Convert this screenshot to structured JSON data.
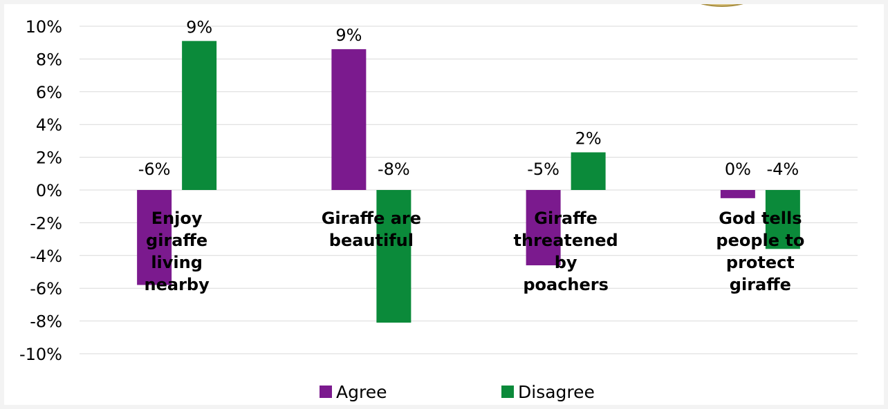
{
  "chart_data": {
    "type": "bar",
    "categories": [
      "Enjoy giraffe living nearby",
      "Giraffe are beautiful",
      "Giraffe threatened by poachers",
      "God tells people to protect giraffe"
    ],
    "category_label_lines": [
      [
        "Enjoy",
        "giraffe",
        "living",
        "nearby"
      ],
      [
        "Giraffe are",
        "beautiful"
      ],
      [
        "Giraffe",
        "threatened",
        "by",
        "poachers"
      ],
      [
        "God tells",
        "people to",
        "protect",
        "giraffe"
      ]
    ],
    "series": [
      {
        "name": "Agree",
        "color": "#7B1A8E",
        "values": [
          -5.8,
          8.6,
          -4.6,
          -0.5
        ],
        "labels": [
          "-6%",
          "9%",
          "-5%",
          "0%"
        ]
      },
      {
        "name": "Disagree",
        "color": "#0B8A3A",
        "values": [
          9.1,
          -8.1,
          2.3,
          -3.6
        ],
        "labels": [
          "9%",
          "-8%",
          "2%",
          "-4%"
        ]
      }
    ],
    "ylim": [
      -10,
      10
    ],
    "yticks": [
      10,
      8,
      6,
      4,
      2,
      0,
      -2,
      -4,
      -6,
      -8,
      -10
    ],
    "ytick_labels": [
      "10%",
      "8%",
      "6%",
      "4%",
      "2%",
      "0%",
      "-2%",
      "-4%",
      "-6%",
      "-8%",
      "-10%"
    ],
    "grid": true,
    "legend_position": "bottom",
    "title": "",
    "xlabel": "",
    "ylabel": ""
  },
  "colors": {
    "grid": "#d9d9d9",
    "text": "#000000"
  }
}
